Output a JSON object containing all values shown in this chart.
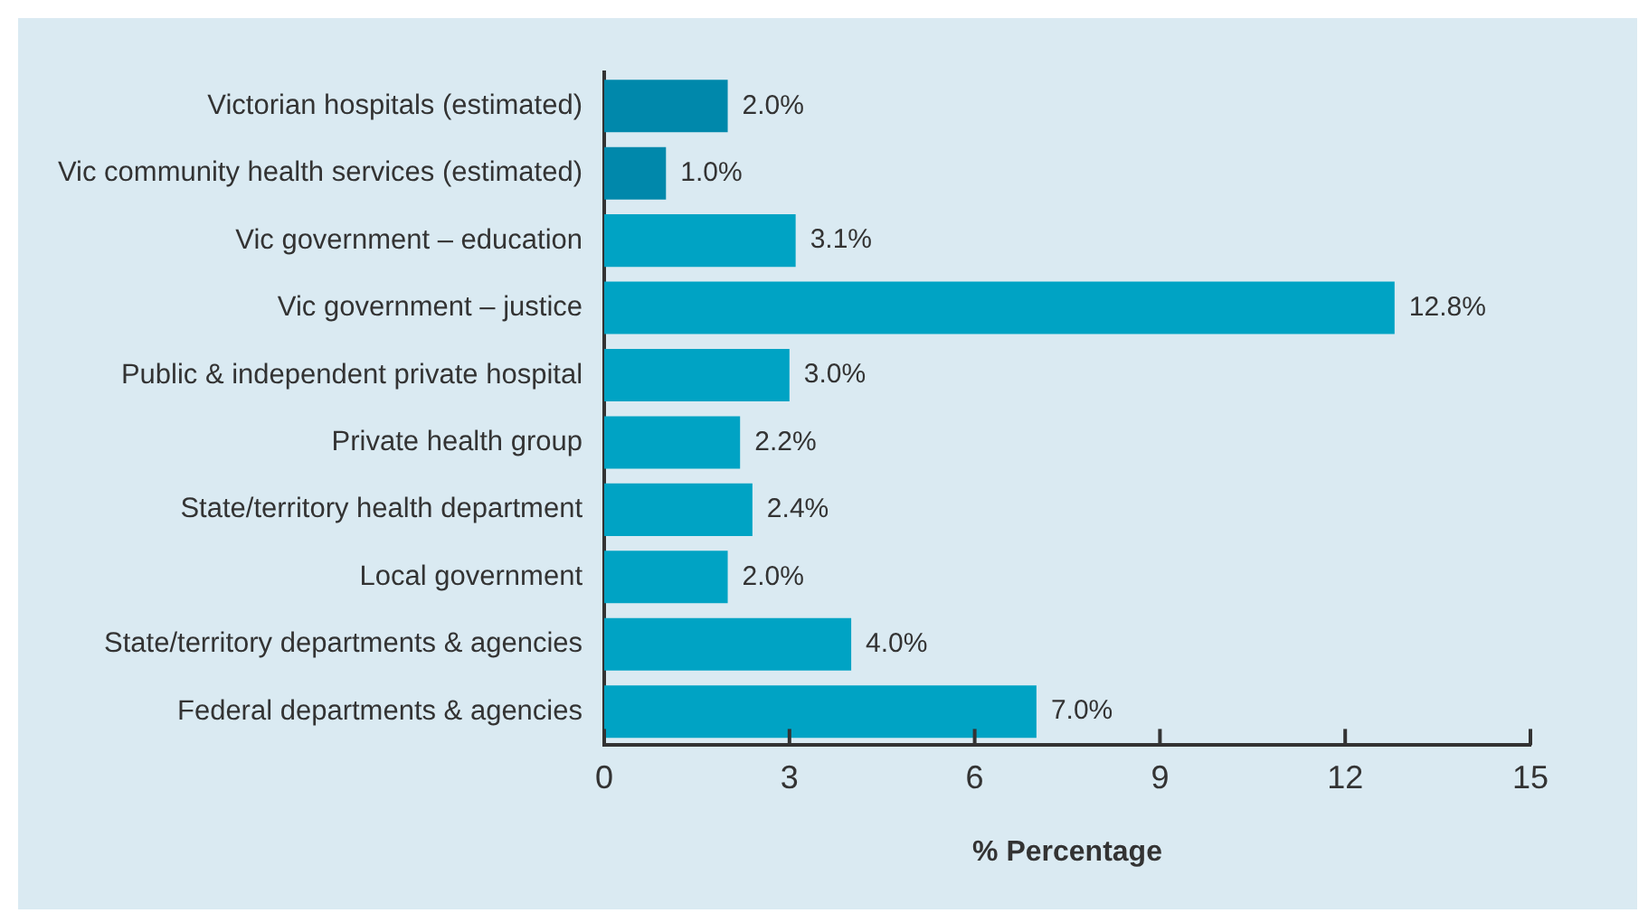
{
  "chart_data": {
    "type": "bar",
    "orientation": "horizontal",
    "xlabel": "% Percentage",
    "categories": [
      "Victorian hospitals (estimated)",
      "Vic community health services (estimated)",
      "Vic government – education",
      "Vic government – justice",
      "Public & independent private hospital",
      "Private health group",
      "State/territory health department",
      "Local government",
      "State/territory departments & agencies",
      "Federal departments & agencies"
    ],
    "values": [
      2.0,
      1.0,
      3.1,
      12.8,
      3.0,
      2.2,
      2.4,
      2.0,
      4.0,
      7.0
    ],
    "value_labels": [
      "2.0%",
      "1.0%",
      "3.1%",
      "12.8%",
      "3.0%",
      "2.2%",
      "2.4%",
      "2.0%",
      "4.0%",
      "7.0%"
    ],
    "colors": [
      "#0088ab",
      "#0088ab",
      "#00a3c4",
      "#00a3c4",
      "#00a3c4",
      "#00a3c4",
      "#00a3c4",
      "#00a3c4",
      "#00a3c4",
      "#00a3c4"
    ],
    "xlim": [
      0,
      15
    ],
    "xticks": [
      0,
      3,
      6,
      9,
      12,
      15
    ],
    "grid": false,
    "legend": false
  }
}
